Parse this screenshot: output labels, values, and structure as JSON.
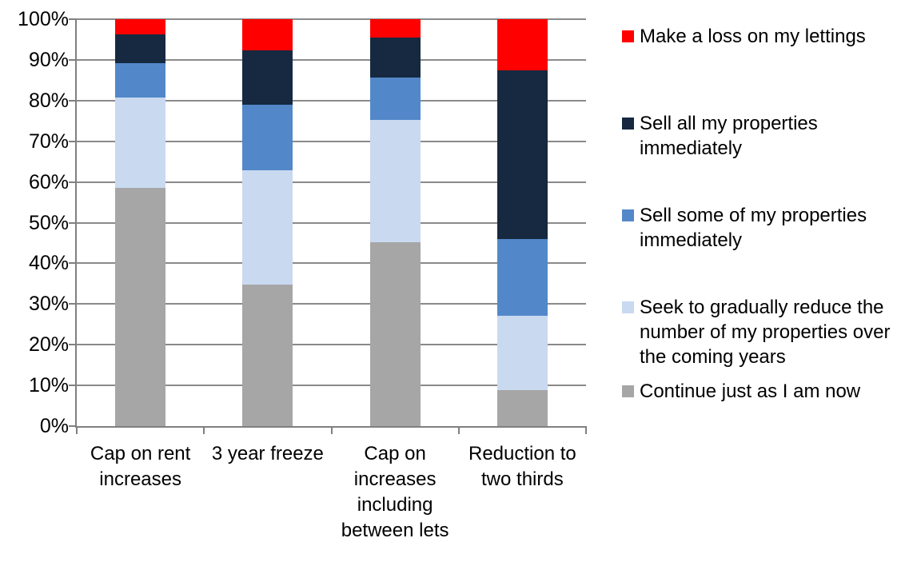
{
  "chart_data": {
    "type": "bar",
    "variant": "100-percent-stacked-column",
    "title": "",
    "xlabel": "",
    "ylabel": "",
    "grid": true,
    "legend_position": "right",
    "categories": [
      "Cap on rent increases",
      "3 year freeze",
      "Cap on increases including between lets",
      "Reduction to two thirds"
    ],
    "category_label_lines": [
      [
        "Cap on rent",
        "increases"
      ],
      [
        "3 year freeze"
      ],
      [
        "Cap on",
        "increases",
        "including",
        "between lets"
      ],
      [
        "Reduction to",
        "two thirds"
      ]
    ],
    "series": [
      {
        "name": "Make a loss on my lettings",
        "label_lines": [
          "Make a loss on my lettings"
        ],
        "color": "#FF0000",
        "values": [
          3.7,
          7.7,
          4.6,
          12.5
        ]
      },
      {
        "name": "Sell all my properties immediately",
        "label_lines": [
          "Sell all my properties",
          "immediately"
        ],
        "color": "#162940",
        "values": [
          7.1,
          13.4,
          9.8,
          41.5
        ]
      },
      {
        "name": "Sell some of my properties immediately",
        "label_lines": [
          "Sell some of my properties",
          "immediately"
        ],
        "color": "#5288C9",
        "values": [
          8.5,
          16.1,
          10.3,
          18.9
        ]
      },
      {
        "name": "Seek to gradually reduce the number of my properties over the coming years",
        "label_lines": [
          "Seek to gradually reduce the",
          "number of my properties over",
          "the coming years"
        ],
        "color": "#C9D9F0",
        "values": [
          22.2,
          28.1,
          30.2,
          18.2
        ]
      },
      {
        "name": "Continue just as I am now",
        "label_lines": [
          "Continue just as I am now"
        ],
        "color": "#A6A6A6",
        "values": [
          58.5,
          34.7,
          45.1,
          8.9
        ]
      }
    ],
    "stacking_note": "series are listed top-of-stack first; bars stack bottom-up in reverse order",
    "y_axis": {
      "min": 0,
      "max": 100,
      "step": 10,
      "tick_labels": [
        "0%",
        "10%",
        "20%",
        "30%",
        "40%",
        "50%",
        "60%",
        "70%",
        "80%",
        "90%",
        "100%"
      ]
    },
    "colors": {
      "gridline": "#8A8A8A",
      "axis": "#808080",
      "background": "#FFFFFF",
      "text": "#000000"
    }
  }
}
